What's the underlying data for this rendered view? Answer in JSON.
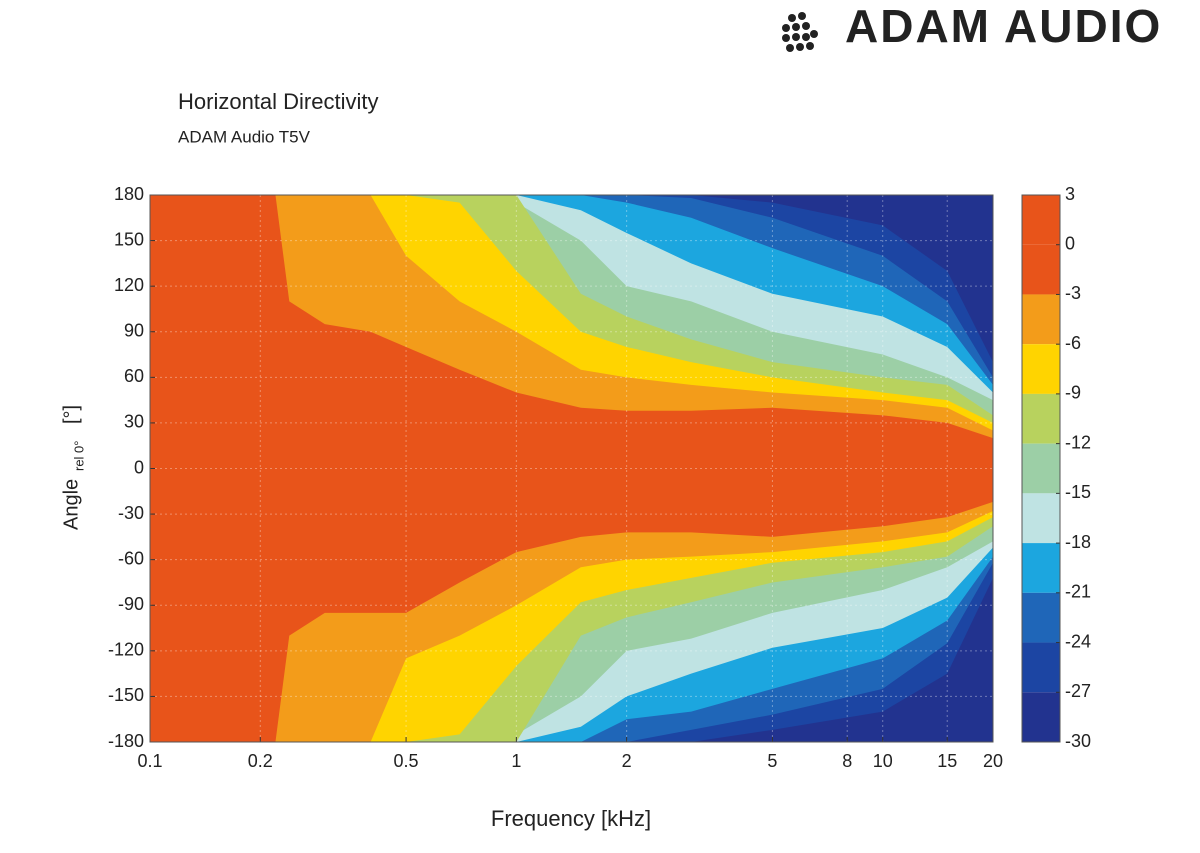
{
  "brand": "ADAM AUDIO",
  "chart_data": {
    "type": "contour",
    "title": "Horizontal Directivity",
    "subtitle": "ADAM Audio T5V",
    "xlabel": "Frequency [kHz]",
    "ylabel": "Angle",
    "ylabel_sub": "rel 0°",
    "ylabel_unit": "[°]",
    "xscale": "log",
    "grid": true,
    "xlim": [
      0.1,
      20
    ],
    "xticks": [
      0.1,
      0.2,
      0.5,
      1,
      2,
      5,
      8,
      10,
      15,
      20
    ],
    "ylim": [
      -180,
      180
    ],
    "yticks": [
      180,
      150,
      120,
      90,
      60,
      30,
      0,
      -30,
      -60,
      -90,
      -120,
      -150,
      -180
    ],
    "zlim": [
      3,
      -30
    ],
    "zticks": [
      3,
      0,
      -3,
      -6,
      -9,
      -12,
      -15,
      -18,
      -21,
      -24,
      -27,
      -30
    ],
    "band_colors": [
      "#e8541a",
      "#e8541a",
      "#f39c1a",
      "#ffd400",
      "#b8d25e",
      "#9ccfa6",
      "#bfe3e3",
      "#1ca6df",
      "#1f66b8",
      "#1c45a3",
      "#22338f"
    ],
    "x": [
      0.1,
      0.22,
      0.24,
      0.3,
      0.4,
      0.5,
      0.7,
      1,
      1.5,
      2,
      3,
      5,
      10,
      15,
      20
    ],
    "boundaries": [
      {
        "upper": [
          180,
          180,
          110,
          95,
          90,
          80,
          65,
          50,
          40,
          38,
          38,
          40,
          35,
          30,
          20
        ],
        "lower": [
          -180,
          -180,
          -110,
          -95,
          -95,
          -95,
          -75,
          -55,
          -45,
          -42,
          -42,
          -45,
          -38,
          -32,
          -22
        ]
      },
      {
        "upper": [
          180,
          180,
          180,
          180,
          180,
          140,
          110,
          90,
          65,
          60,
          55,
          50,
          45,
          40,
          25
        ],
        "lower": [
          -180,
          -180,
          -180,
          -180,
          -180,
          -125,
          -110,
          -90,
          -65,
          -60,
          -58,
          -55,
          -48,
          -42,
          -28
        ]
      },
      {
        "upper": [
          180,
          180,
          180,
          180,
          180,
          180,
          175,
          130,
          90,
          80,
          70,
          60,
          50,
          45,
          30
        ],
        "lower": [
          -180,
          -180,
          -180,
          -180,
          -180,
          -180,
          -175,
          -130,
          -88,
          -80,
          -72,
          -62,
          -55,
          -48,
          -32
        ]
      },
      {
        "upper": [
          180,
          180,
          180,
          180,
          180,
          180,
          180,
          180,
          115,
          100,
          85,
          70,
          60,
          55,
          35
        ],
        "lower": [
          -180,
          -180,
          -180,
          -180,
          -180,
          -180,
          -180,
          -180,
          -110,
          -98,
          -88,
          -75,
          -65,
          -58,
          -38
        ]
      },
      {
        "upper": [
          180,
          180,
          180,
          180,
          180,
          180,
          180,
          175,
          150,
          120,
          110,
          90,
          75,
          60,
          45
        ],
        "lower": [
          -180,
          -180,
          -180,
          -180,
          -180,
          -180,
          -180,
          -175,
          -150,
          -120,
          -112,
          -95,
          -80,
          -65,
          -48
        ]
      },
      {
        "upper": [
          180,
          180,
          180,
          180,
          180,
          180,
          180,
          180,
          170,
          155,
          135,
          115,
          100,
          80,
          50
        ],
        "lower": [
          -180,
          -180,
          -180,
          -180,
          -180,
          -180,
          -180,
          -180,
          -170,
          -150,
          -135,
          -118,
          -105,
          -85,
          -52
        ]
      },
      {
        "upper": [
          180,
          180,
          180,
          180,
          180,
          180,
          180,
          180,
          180,
          175,
          165,
          145,
          120,
          95,
          55
        ],
        "lower": [
          -180,
          -180,
          -180,
          -180,
          -180,
          -180,
          -180,
          -180,
          -180,
          -165,
          -160,
          -145,
          -125,
          -100,
          -58
        ]
      },
      {
        "upper": [
          180,
          180,
          180,
          180,
          180,
          180,
          180,
          180,
          180,
          180,
          178,
          165,
          140,
          110,
          60
        ],
        "lower": [
          -180,
          -180,
          -180,
          -180,
          -180,
          -180,
          -180,
          -180,
          -180,
          -180,
          -172,
          -162,
          -145,
          -115,
          -62
        ]
      },
      {
        "upper": [
          180,
          180,
          180,
          180,
          180,
          180,
          180,
          180,
          180,
          180,
          180,
          175,
          160,
          130,
          70
        ],
        "lower": [
          -180,
          -180,
          -180,
          -180,
          -180,
          -180,
          -180,
          -180,
          -180,
          -180,
          -180,
          -172,
          -160,
          -135,
          -72
        ]
      }
    ]
  }
}
